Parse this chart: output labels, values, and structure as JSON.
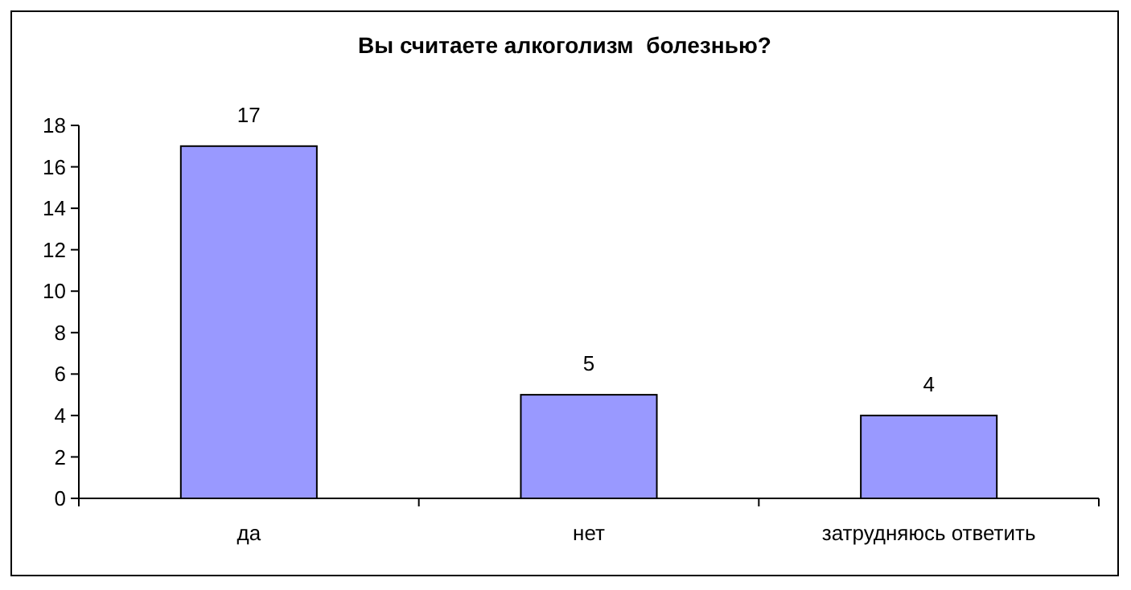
{
  "chart_data": {
    "type": "bar",
    "title": "Вы считаете алкоголизм  болезнью?",
    "categories": [
      "да",
      "нет",
      "затрудняюсь ответить"
    ],
    "values": [
      17,
      5,
      4
    ],
    "color": "#9999ff",
    "ylim": [
      0,
      18
    ],
    "yticks": [
      0,
      2,
      4,
      6,
      8,
      10,
      12,
      14,
      16,
      18
    ],
    "grid": false,
    "data_labels": true
  }
}
